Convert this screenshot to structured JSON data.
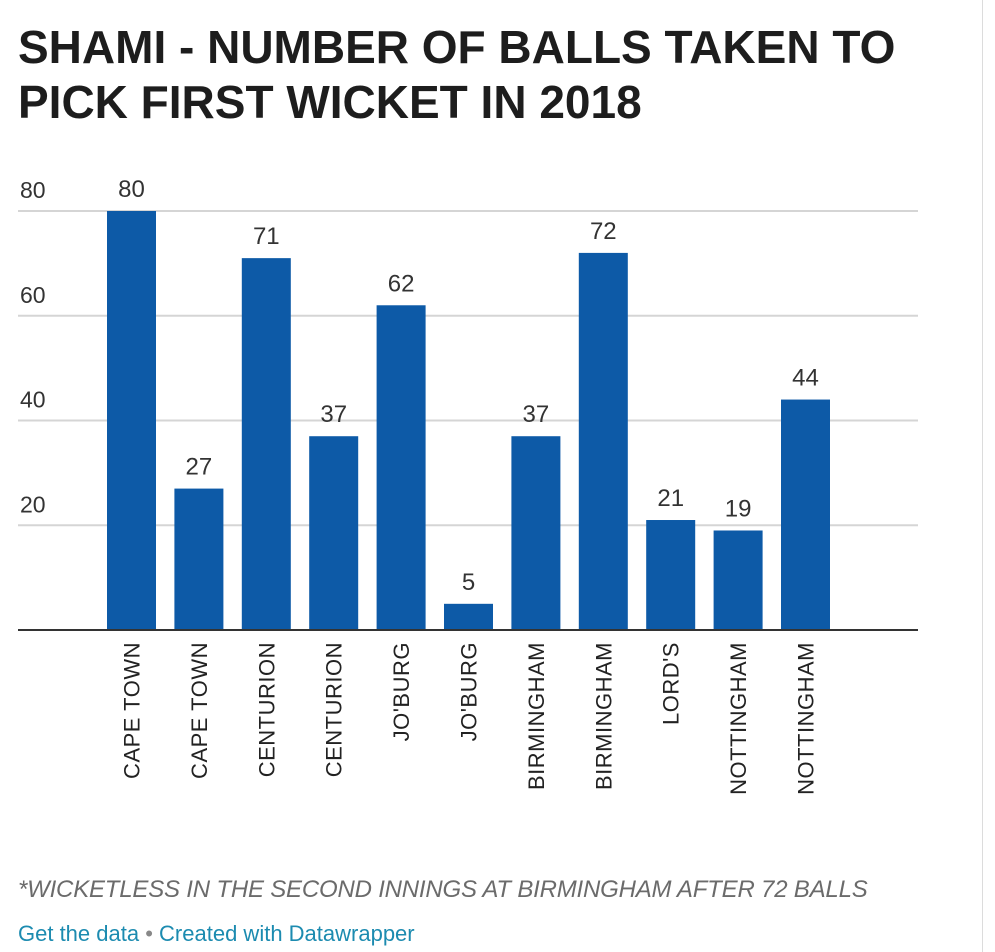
{
  "chart_data": {
    "type": "bar",
    "title": "SHAMI - NUMBER OF BALLS TAKEN TO PICK FIRST WICKET IN 2018",
    "categories": [
      "CAPE TOWN",
      "CAPE TOWN",
      "CENTURION",
      "CENTURION",
      "JO'BURG",
      "JO'BURG",
      "BIRMINGHAM",
      "BIRMINGHAM",
      "LORD'S",
      "NOTTINGHAM",
      "NOTTINGHAM"
    ],
    "values": [
      80,
      27,
      71,
      37,
      62,
      5,
      37,
      72,
      21,
      19,
      44
    ],
    "yticks": [
      20,
      40,
      60,
      80
    ],
    "ylim": [
      0,
      80
    ],
    "grid": true,
    "bar_color": "#0d5aa7"
  },
  "note": "*WICKETLESS IN THE SECOND INNINGS AT BIRMINGHAM AFTER 72 BALLS",
  "footer": {
    "get_data": "Get the data",
    "separator": "•",
    "created_with": "Created with Datawrapper"
  }
}
